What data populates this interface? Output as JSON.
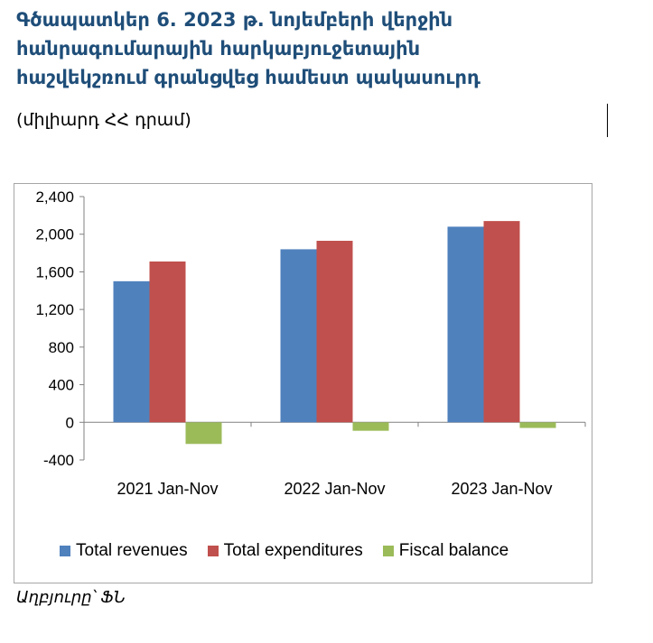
{
  "title_lines": [
    "Գծապատկեր  6.  2023 թ. նոյեմբերի վերջին",
    "հանրագումարային հարկաբյուջետային",
    "հաշվեկշռում գրանցվեց համեստ պակասուրդ"
  ],
  "units": "(միլիարդ ՀՀ դրամ)",
  "source": "Աղբյուրը՝  ՖՆ",
  "chart_data": {
    "type": "bar",
    "categories": [
      "2021 Jan-Nov",
      "2022 Jan-Nov",
      "2023 Jan-Nov"
    ],
    "series": [
      {
        "name": "Total revenues",
        "color": "#4f81bd",
        "values": [
          1500,
          1840,
          2080
        ]
      },
      {
        "name": "Total expenditures",
        "color": "#c0504d",
        "values": [
          1710,
          1930,
          2140
        ]
      },
      {
        "name": "Fiscal balance",
        "color": "#9bbb59",
        "values": [
          -230,
          -90,
          -60
        ]
      }
    ],
    "ylim": [
      -400,
      2400
    ],
    "yticks": [
      "2,400",
      "2,000",
      "1,600",
      "1,200",
      "800",
      "400",
      "0",
      "-400"
    ],
    "ytick_values": [
      2400,
      2000,
      1600,
      1200,
      800,
      400,
      0,
      -400
    ],
    "grid": false,
    "legend_position": "bottom"
  }
}
